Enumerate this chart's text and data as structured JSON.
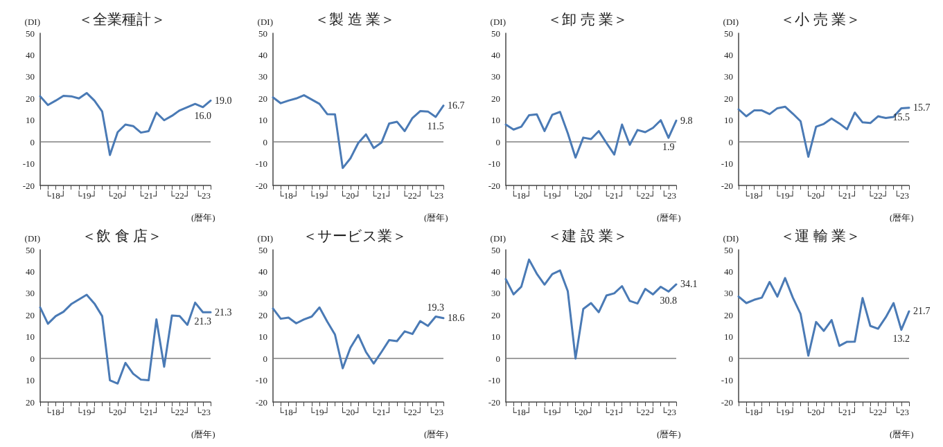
{
  "chart_data": [
    {
      "type": "line",
      "title": "＜全業種計＞",
      "ylabel": "(DI)",
      "xlabel": "(暦年)",
      "categories": [
        null,
        null,
        "└18┘",
        null,
        null,
        null,
        "└19┘",
        null,
        null,
        null,
        "└20┘",
        null,
        null,
        null,
        "└21┘",
        null,
        null,
        null,
        "└22┘",
        null,
        null,
        "└23",
        null
      ],
      "series": [
        {
          "color": "#4a7ab5",
          "values": [
            21.0,
            17.0,
            19.0,
            21.2,
            21.0,
            20.0,
            22.5,
            19.0,
            14.0,
            -6.0,
            4.5,
            8.0,
            7.3,
            4.3,
            5.0,
            13.5,
            10.0,
            12.0,
            14.5,
            16.0,
            17.5,
            16.0,
            19.0
          ],
          "value_labels": [
            null,
            null,
            null,
            null,
            null,
            null,
            null,
            null,
            null,
            null,
            null,
            null,
            null,
            null,
            null,
            null,
            null,
            null,
            null,
            null,
            null,
            "16.0",
            "19.0"
          ]
        }
      ],
      "ylim": [
        -20,
        50
      ],
      "yticks": [
        -20,
        -10,
        0,
        10,
        20,
        30,
        40,
        50
      ],
      "ref_lines": [
        {
          "axis": "y",
          "value": 0,
          "color": "#7f7f7f"
        }
      ],
      "grid": false,
      "marker": "none",
      "line_style": "solid"
    },
    {
      "type": "line",
      "title": "＜製 造 業＞",
      "ylabel": "(DI)",
      "xlabel": "(暦年)",
      "categories": [
        null,
        null,
        "└18┘",
        null,
        null,
        null,
        "└19┘",
        null,
        null,
        null,
        "└20┘",
        null,
        null,
        null,
        "└21┘",
        null,
        null,
        null,
        "└22┘",
        null,
        null,
        "└23",
        null
      ],
      "series": [
        {
          "color": "#4a7ab5",
          "values": [
            20.5,
            17.8,
            19.0,
            20.0,
            21.5,
            19.5,
            17.5,
            12.8,
            12.7,
            -12.0,
            -7.5,
            -0.5,
            3.5,
            -2.8,
            -0.3,
            8.5,
            9.3,
            5.0,
            11.0,
            14.2,
            14.0,
            11.5,
            16.7
          ],
          "value_labels": [
            null,
            null,
            null,
            null,
            null,
            null,
            null,
            null,
            null,
            null,
            null,
            null,
            null,
            null,
            null,
            null,
            null,
            null,
            null,
            null,
            null,
            "11.5",
            "16.7"
          ]
        }
      ],
      "ylim": [
        -20,
        50
      ],
      "yticks": [
        -20,
        -10,
        0,
        10,
        20,
        30,
        40,
        50
      ],
      "ref_lines": [
        {
          "axis": "y",
          "value": 0,
          "color": "#7f7f7f"
        }
      ],
      "grid": false,
      "marker": "none",
      "line_style": "solid"
    },
    {
      "type": "line",
      "title": "＜卸 売 業＞",
      "ylabel": "(DI)",
      "xlabel": "(暦年)",
      "categories": [
        null,
        null,
        "└18┘",
        null,
        null,
        null,
        "└19┘",
        null,
        null,
        null,
        "└20┘",
        null,
        null,
        null,
        "└21┘",
        null,
        null,
        null,
        "└22┘",
        null,
        null,
        "└23",
        null
      ],
      "series": [
        {
          "color": "#4a7ab5",
          "values": [
            8.0,
            5.7,
            7.0,
            12.3,
            12.7,
            5.0,
            12.5,
            13.8,
            4.0,
            -7.2,
            2.0,
            1.3,
            5.0,
            -0.5,
            -5.8,
            8.0,
            -1.3,
            5.5,
            4.5,
            6.5,
            10.0,
            1.9,
            9.8
          ],
          "value_labels": [
            null,
            null,
            null,
            null,
            null,
            null,
            null,
            null,
            null,
            null,
            null,
            null,
            null,
            null,
            null,
            null,
            null,
            null,
            null,
            null,
            null,
            "1.9",
            "9.8"
          ]
        }
      ],
      "ylim": [
        -20,
        50
      ],
      "yticks": [
        -20,
        -10,
        0,
        10,
        20,
        30,
        40,
        50
      ],
      "ref_lines": [
        {
          "axis": "y",
          "value": 0,
          "color": "#7f7f7f"
        }
      ],
      "grid": false,
      "marker": "none",
      "line_style": "solid"
    },
    {
      "type": "line",
      "title": "＜小 売 業＞",
      "ylabel": "(DI)",
      "xlabel": "(暦年)",
      "categories": [
        null,
        null,
        "└18┘",
        null,
        null,
        null,
        "└19┘",
        null,
        null,
        null,
        "└20┘",
        null,
        null,
        null,
        "└21┘",
        null,
        null,
        null,
        "└22┘",
        null,
        null,
        "└23",
        null
      ],
      "series": [
        {
          "color": "#4a7ab5",
          "values": [
            15.0,
            11.8,
            14.5,
            14.5,
            12.8,
            15.5,
            16.2,
            13.0,
            9.5,
            -6.8,
            7.0,
            8.3,
            10.8,
            8.5,
            5.8,
            13.5,
            9.0,
            8.7,
            11.8,
            11.0,
            11.5,
            15.5,
            15.7
          ],
          "value_labels": [
            null,
            null,
            null,
            null,
            null,
            null,
            null,
            null,
            null,
            null,
            null,
            null,
            null,
            null,
            null,
            null,
            null,
            null,
            null,
            null,
            null,
            "15.5",
            "15.7"
          ]
        }
      ],
      "ylim": [
        -20,
        50
      ],
      "yticks": [
        -20,
        -10,
        0,
        10,
        20,
        30,
        40,
        50
      ],
      "ref_lines": [
        {
          "axis": "y",
          "value": 0,
          "color": "#7f7f7f"
        }
      ],
      "grid": false,
      "marker": "none",
      "line_style": "solid"
    },
    {
      "type": "line",
      "title": "＜飲 食 店＞",
      "ylabel": "(DI)",
      "xlabel": "(暦年)",
      "categories": [
        null,
        null,
        "└18┘",
        null,
        null,
        null,
        "└19┘",
        null,
        null,
        null,
        "└20┘",
        null,
        null,
        null,
        "└21┘",
        null,
        null,
        null,
        "└22┘",
        null,
        null,
        "└23",
        null
      ],
      "series": [
        {
          "color": "#4a7ab5",
          "values": [
            23.5,
            16.0,
            19.5,
            21.5,
            25.0,
            27.2,
            29.3,
            25.3,
            19.5,
            -10.0,
            -11.5,
            -2.0,
            -7.0,
            -9.7,
            -10.0,
            18.0,
            -3.8,
            19.8,
            19.5,
            15.5,
            25.7,
            21.3,
            21.3
          ],
          "value_labels": [
            null,
            null,
            null,
            null,
            null,
            null,
            null,
            null,
            null,
            null,
            null,
            null,
            null,
            null,
            null,
            null,
            null,
            null,
            null,
            null,
            null,
            "21.3",
            "21.3"
          ]
        }
      ],
      "ylim": [
        -20,
        50
      ],
      "yticks": [
        {
          "value": -20,
          "label": "20"
        },
        {
          "value": -10,
          "label": "10"
        },
        0,
        10,
        20,
        30,
        40,
        50
      ],
      "ref_lines": [
        {
          "axis": "y",
          "value": 0,
          "color": "#7f7f7f"
        }
      ],
      "grid": false,
      "marker": "none",
      "line_style": "solid"
    },
    {
      "type": "line",
      "title": "＜サービス業＞",
      "ylabel": "(DI)",
      "xlabel": "(暦年)",
      "categories": [
        null,
        null,
        "└18┘",
        null,
        null,
        null,
        "└19┘",
        null,
        null,
        null,
        "└20┘",
        null,
        null,
        null,
        "└21┘",
        null,
        null,
        null,
        "└22┘",
        null,
        null,
        "└23",
        null
      ],
      "series": [
        {
          "color": "#4a7ab5",
          "values": [
            23.0,
            18.3,
            18.8,
            16.2,
            18.0,
            19.3,
            23.5,
            17.0,
            11.0,
            -4.5,
            5.0,
            10.8,
            3.0,
            -2.3,
            3.0,
            8.5,
            8.0,
            12.5,
            11.3,
            17.2,
            15.0,
            19.3,
            18.6
          ],
          "value_labels": [
            null,
            null,
            null,
            null,
            null,
            null,
            null,
            null,
            null,
            null,
            null,
            null,
            null,
            null,
            null,
            null,
            null,
            null,
            null,
            null,
            null,
            "19.3",
            "18.6"
          ]
        }
      ],
      "ylim": [
        -20,
        50
      ],
      "yticks": [
        -20,
        -10,
        0,
        10,
        20,
        30,
        40,
        50
      ],
      "ref_lines": [
        {
          "axis": "y",
          "value": 0,
          "color": "#7f7f7f"
        }
      ],
      "grid": false,
      "marker": "none",
      "line_style": "solid"
    },
    {
      "type": "line",
      "title": "＜建 設 業＞",
      "ylabel": "(DI)",
      "xlabel": "(暦年)",
      "categories": [
        null,
        null,
        "└18┘",
        null,
        null,
        null,
        "└19┘",
        null,
        null,
        null,
        "└20┘",
        null,
        null,
        null,
        "└21┘",
        null,
        null,
        null,
        "└22┘",
        null,
        null,
        "└23",
        null
      ],
      "series": [
        {
          "color": "#4a7ab5",
          "values": [
            36.5,
            29.5,
            33.0,
            45.5,
            39.0,
            34.0,
            38.8,
            40.5,
            31.0,
            0.0,
            22.8,
            25.5,
            21.3,
            29.0,
            30.0,
            33.3,
            26.5,
            25.3,
            32.0,
            29.5,
            33.0,
            30.8,
            34.1
          ],
          "value_labels": [
            null,
            null,
            null,
            null,
            null,
            null,
            null,
            null,
            null,
            null,
            null,
            null,
            null,
            null,
            null,
            null,
            null,
            null,
            null,
            null,
            null,
            "30.8",
            "34.1"
          ]
        }
      ],
      "ylim": [
        -20,
        50
      ],
      "yticks": [
        -20,
        -10,
        0,
        10,
        20,
        30,
        40,
        50
      ],
      "ref_lines": [
        {
          "axis": "y",
          "value": 0,
          "color": "#7f7f7f"
        }
      ],
      "grid": false,
      "marker": "none",
      "line_style": "solid"
    },
    {
      "type": "line",
      "title": "＜運 輸 業＞",
      "ylabel": "(DI)",
      "xlabel": "(暦年)",
      "categories": [
        null,
        null,
        "└18┘",
        null,
        null,
        null,
        "└19┘",
        null,
        null,
        null,
        "└20┘",
        null,
        null,
        null,
        "└21┘",
        null,
        null,
        null,
        "└22┘",
        null,
        null,
        "└23",
        null
      ],
      "series": [
        {
          "color": "#4a7ab5",
          "values": [
            28.5,
            25.5,
            27.0,
            28.0,
            35.2,
            28.5,
            37.0,
            28.0,
            20.5,
            1.3,
            16.8,
            12.7,
            17.7,
            5.8,
            7.7,
            7.8,
            27.8,
            15.0,
            13.7,
            19.0,
            25.5,
            13.2,
            21.7
          ],
          "value_labels": [
            null,
            null,
            null,
            null,
            null,
            null,
            null,
            null,
            null,
            null,
            null,
            null,
            null,
            null,
            null,
            null,
            null,
            null,
            null,
            null,
            null,
            "13.2",
            "21.7"
          ]
        }
      ],
      "ylim": [
        -20,
        50
      ],
      "yticks": [
        -20,
        -10,
        0,
        10,
        20,
        30,
        40,
        50
      ],
      "ref_lines": [
        {
          "axis": "y",
          "value": 0,
          "color": "#7f7f7f"
        }
      ],
      "grid": false,
      "marker": "none",
      "line_style": "solid"
    }
  ]
}
